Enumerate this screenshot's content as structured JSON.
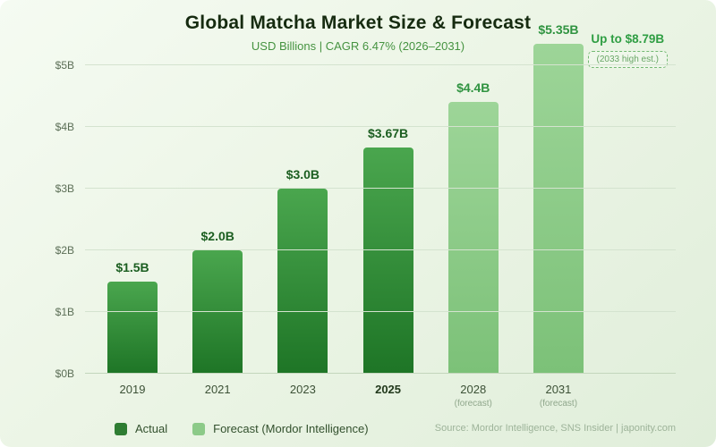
{
  "header": {
    "title": "Global Matcha Market Size & Forecast",
    "subtitle": "USD Billions | CAGR 6.47% (2026–2031)"
  },
  "annotation": {
    "headline": "Up to $8.79B",
    "note": "(2033 high est.)"
  },
  "chart_data": {
    "type": "bar",
    "title": "Global Matcha Market Size & Forecast",
    "subtitle": "USD Billions | CAGR 6.47% (2026–2031)",
    "categories": [
      "2019",
      "2021",
      "2023",
      "2025",
      "2028",
      "2031"
    ],
    "values": [
      1.5,
      2.0,
      3.0,
      3.67,
      4.4,
      5.35
    ],
    "bar_labels": [
      "$1.5B",
      "$2.0B",
      "$3.0B",
      "$3.67B",
      "$4.4B",
      "$5.35B"
    ],
    "bar_kind": [
      "actual",
      "actual",
      "actual",
      "actual",
      "forecast",
      "forecast"
    ],
    "sub_labels": [
      "",
      "",
      "",
      "",
      "(forecast)",
      "(forecast)"
    ],
    "emphasized_category": "2025",
    "ylim": [
      0,
      5.5
    ],
    "yticks": [
      0,
      1,
      2,
      3,
      4,
      5
    ],
    "ytick_labels": [
      "$0B",
      "$1B",
      "$2B",
      "$3B",
      "$4B",
      "$5B"
    ],
    "grid": true,
    "legend_position": "bottom-left",
    "legend": [
      {
        "label": "Actual",
        "kind": "actual"
      },
      {
        "label": "Forecast (Mordor Intelligence)",
        "kind": "forecast"
      }
    ],
    "annotation": "Up to $8.79B (2033 high est.)"
  },
  "footer": {
    "source": "Source: Mordor Intelligence, SNS Insider | japonity.com"
  },
  "colors": {
    "actual_bar_top": "#4aa64e",
    "actual_bar_bottom": "#1e7526",
    "forecast_bar_top": "#9dd598",
    "forecast_bar_bottom": "#7cc178",
    "actual_label": "#1b5e20",
    "forecast_label": "#2f9340",
    "legend_actual": "#2e7d32",
    "legend_forecast": "#8cca88",
    "accent_green": "#2f9e43"
  }
}
